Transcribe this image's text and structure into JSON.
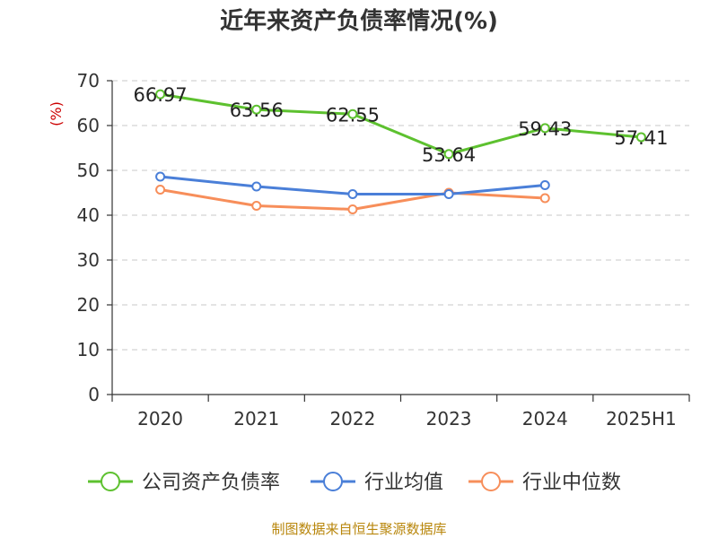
{
  "chart_data": {
    "type": "line",
    "title": "近年来资产负债率情况(%)",
    "ylabel": "(%)",
    "categories": [
      "2020",
      "2021",
      "2022",
      "2023",
      "2024",
      "2025H1"
    ],
    "ylim": [
      0,
      70
    ],
    "yticks": [
      0,
      10,
      20,
      30,
      40,
      50,
      60,
      70
    ],
    "grid": true,
    "legend_position": "bottom",
    "series": [
      {
        "name": "公司资产负债率",
        "color": "#5dc12f",
        "values": [
          66.97,
          63.56,
          62.55,
          53.64,
          59.43,
          57.41
        ],
        "labels": [
          "66.97",
          "63.56",
          "62.55",
          "53.64",
          "59.43",
          "57.41"
        ]
      },
      {
        "name": "行业均值",
        "color": "#4a7fd8",
        "values": [
          48.6,
          46.4,
          44.7,
          44.7,
          46.7,
          null
        ]
      },
      {
        "name": "行业中位数",
        "color": "#f78e5a",
        "values": [
          45.7,
          42.1,
          41.3,
          45.0,
          43.8,
          null
        ]
      }
    ],
    "source": "制图数据来自恒生聚源数据库"
  }
}
